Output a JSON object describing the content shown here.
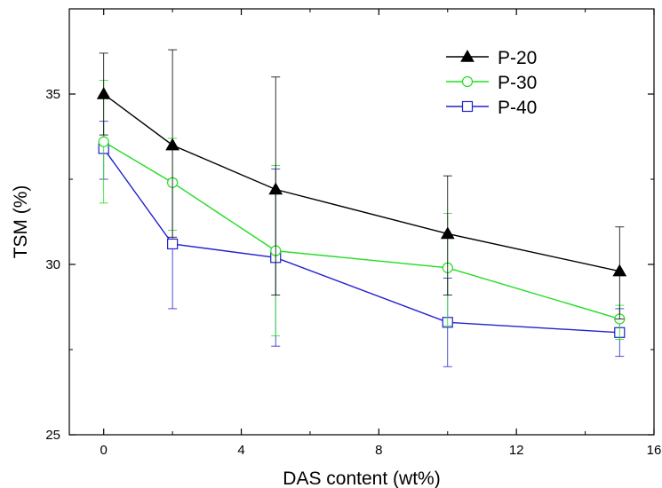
{
  "chart_data": {
    "type": "line",
    "xlabel": "DAS content (wt%)",
    "ylabel": "TSM (%)",
    "xlim": [
      -1,
      16
    ],
    "ylim": [
      25,
      37.5
    ],
    "xticks": [
      0,
      4,
      8,
      12,
      16
    ],
    "yticks": [
      25,
      30,
      35
    ],
    "x_tick_labels": [
      "0",
      "4",
      "8",
      "12",
      "16"
    ],
    "y_tick_labels": [
      "25",
      "30",
      "35"
    ],
    "legend_position": "top-right",
    "grid": false,
    "series": [
      {
        "name": "P-20",
        "color": "#000000",
        "marker": "filled-triangle",
        "x": [
          0,
          2,
          5,
          10,
          15
        ],
        "y": [
          35.0,
          33.5,
          32.2,
          30.9,
          29.8
        ],
        "err_low": [
          33.8,
          30.8,
          29.1,
          29.1,
          28.4
        ],
        "err_high": [
          36.2,
          36.3,
          35.5,
          32.6,
          31.1
        ]
      },
      {
        "name": "P-30",
        "color": "#22dd22",
        "marker": "open-circle",
        "x": [
          0,
          2,
          5,
          10,
          15
        ],
        "y": [
          33.6,
          32.4,
          30.4,
          29.9,
          28.4
        ],
        "err_low": [
          31.8,
          31.0,
          27.9,
          28.2,
          27.8
        ],
        "err_high": [
          35.4,
          33.7,
          32.9,
          31.5,
          28.8
        ]
      },
      {
        "name": "P-40",
        "color": "#2222cc",
        "marker": "open-square",
        "x": [
          0,
          2,
          5,
          10,
          15
        ],
        "y": [
          33.4,
          30.6,
          30.2,
          28.3,
          28.0
        ],
        "err_low": [
          32.5,
          28.7,
          27.6,
          27.0,
          27.3
        ],
        "err_high": [
          34.2,
          32.5,
          32.8,
          29.6,
          28.7
        ]
      }
    ]
  }
}
